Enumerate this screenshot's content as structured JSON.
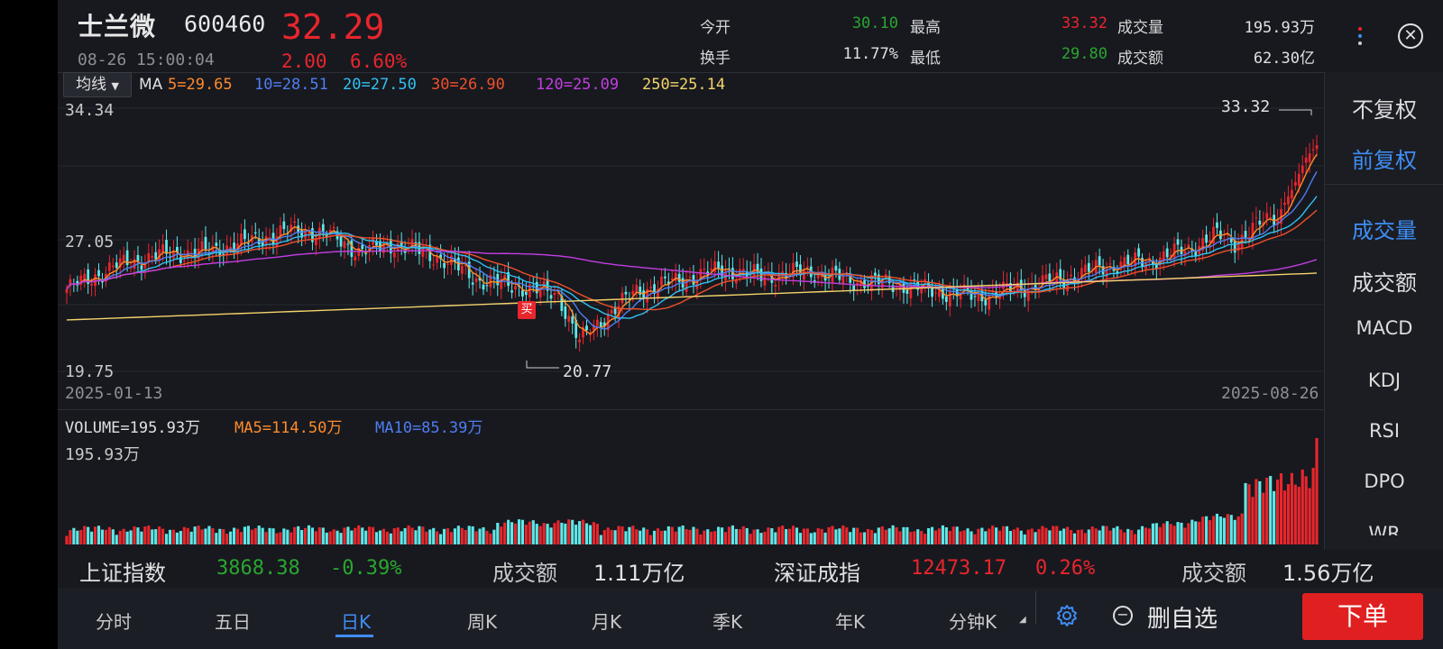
{
  "header": {
    "stock_name": "士兰微",
    "stock_code": "600460",
    "price": "32.29",
    "datetime": "08-26 15:00:04",
    "change": "2.00",
    "change_pct": "6.60%",
    "stats": {
      "open_label": "今开",
      "open": "30.10",
      "high_label": "最高",
      "high": "33.32",
      "volume_label": "成交量",
      "volume": "195.93万",
      "turnover_label": "换手",
      "turnover": "11.77%",
      "low_label": "最低",
      "low": "29.80",
      "amount_label": "成交额",
      "amount": "62.30亿"
    }
  },
  "toolbar": {
    "ma_button": "均线",
    "ma_title": "MA",
    "ma_values": [
      {
        "label": "5=29.65",
        "color": "#ff8a2a"
      },
      {
        "label": "10=28.51",
        "color": "#4f7df0"
      },
      {
        "label": "20=27.50",
        "color": "#31c0f0"
      },
      {
        "label": "30=26.90",
        "color": "#f0502a"
      },
      {
        "label": "120=25.09",
        "color": "#c23ee0"
      },
      {
        "label": "250=25.14",
        "color": "#f5d36a"
      }
    ]
  },
  "kline": {
    "y_top": "34.34",
    "y_mid": "27.05",
    "y_bottom": "19.75",
    "max_marker": "33.32",
    "min_marker": "20.77",
    "start_date": "2025-01-13",
    "end_date": "2025-08-26",
    "buy_tag": "买"
  },
  "volume": {
    "label": "VOLUME=195.93万",
    "ma5": "MA5=114.50万",
    "ma10": "MA10=85.39万",
    "axis_max": "195.93万"
  },
  "side_menu": {
    "items": [
      "不复权",
      "前复权",
      "成交量",
      "成交额",
      "MACD",
      "KDJ",
      "RSI",
      "DPO",
      "WR"
    ],
    "active": [
      "前复权",
      "成交量"
    ]
  },
  "index_ticker": {
    "sh_name": "上证指数",
    "sh_value": "3868.38",
    "sh_pct": "-0.39%",
    "sh_amount_label": "成交额",
    "sh_amount": "1.11万亿",
    "sz_name": "深证成指",
    "sz_value": "12473.17",
    "sz_pct": "0.26%",
    "sz_amount_label": "成交额",
    "sz_amount": "1.56万亿"
  },
  "bottom_tabs": {
    "items": [
      "分时",
      "五日",
      "日K",
      "周K",
      "月K",
      "季K",
      "年K",
      "分钟K"
    ],
    "active": "日K",
    "remove_watch": "删自选",
    "order": "下单"
  },
  "colors": {
    "up": "#e8262c",
    "down": "#5ee8e8",
    "accent": "#3f8ef5"
  }
}
